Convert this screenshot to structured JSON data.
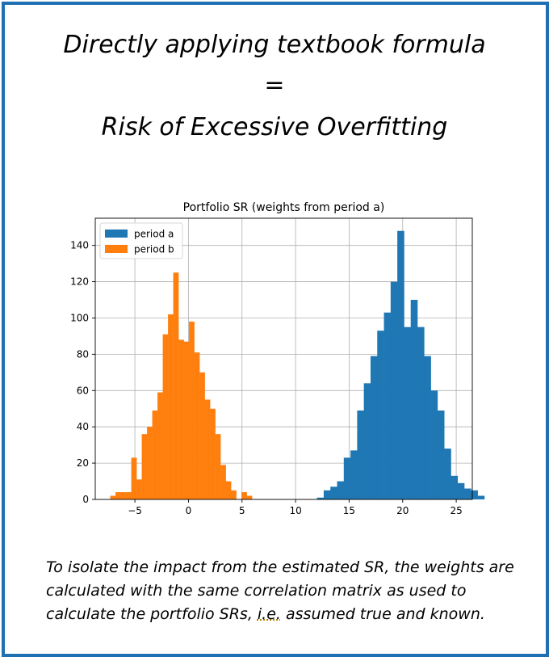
{
  "slide": {
    "title_line1": "Directly applying textbook formula",
    "equals": "=",
    "title_line3": "Risk of Excessive Overfitting",
    "caption_part1": "To isolate the impact from the estimated SR, the weights are calculated with the same correlation matrix as used to calculate the portfolio SRs, ",
    "caption_ie": "i.e.",
    "caption_part2": " assumed true and known.",
    "border_color": "#1f6fb3"
  },
  "chart_data": {
    "type": "histogram",
    "title": "Portfolio SR (weights from period a)",
    "xlabel": "",
    "ylabel": "",
    "xlim": [
      -8.7,
      26.5
    ],
    "ylim": [
      0,
      155
    ],
    "xticks": [
      -5,
      0,
      5,
      10,
      15,
      20,
      25
    ],
    "xtick_labels": [
      "−5",
      "0",
      "5",
      "10",
      "15",
      "20",
      "25"
    ],
    "yticks": [
      0,
      20,
      40,
      60,
      80,
      100,
      120,
      140
    ],
    "grid": true,
    "legend_position": "top-left",
    "series": [
      {
        "name": "period a",
        "color": "#1f77b4",
        "bin_start": 12.0,
        "bin_width": 0.625,
        "counts": [
          1,
          5,
          7,
          10,
          23,
          27,
          49,
          64,
          79,
          93,
          103,
          120,
          148,
          95,
          110,
          95,
          79,
          60,
          49,
          28,
          13,
          9,
          6,
          5,
          2
        ]
      },
      {
        "name": "period b",
        "color": "#ff7f0e",
        "bin_start": -7.3,
        "bin_width": 0.49,
        "counts": [
          2,
          4,
          4,
          4,
          23,
          11,
          36,
          40,
          49,
          59,
          91,
          102,
          125,
          88,
          87,
          98,
          81,
          70,
          55,
          50,
          36,
          19,
          10,
          5,
          0,
          4,
          2
        ]
      }
    ]
  }
}
